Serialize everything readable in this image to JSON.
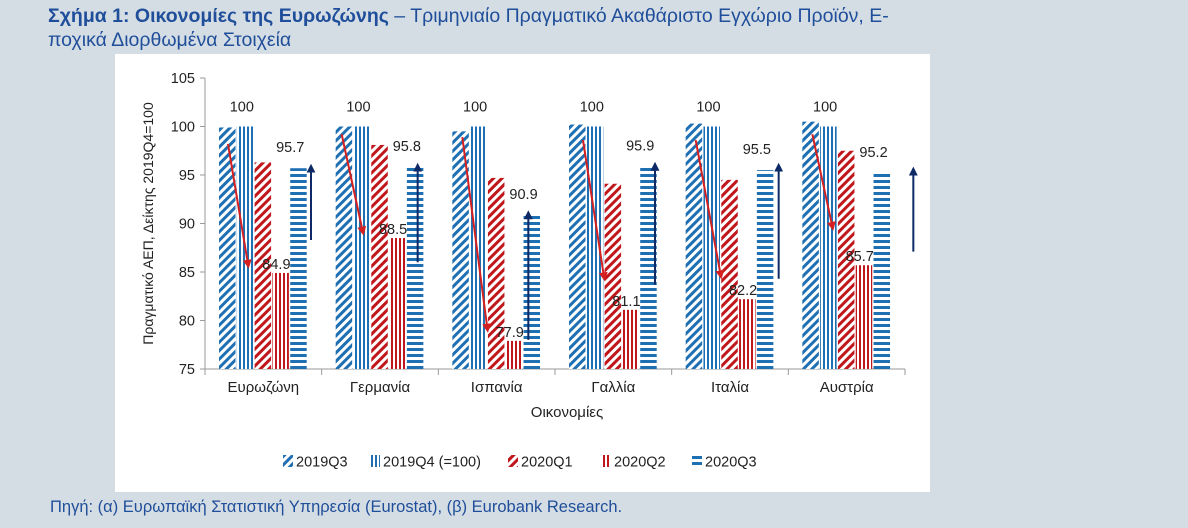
{
  "header": {
    "title_bold": "Σχήμα 1: Οικονομίες της Ευρωζώνης",
    "title_rest": " – Τριμηνιαίο Πραγματικό Ακαθάριστο Εγχώριο Προϊόν, Ε-",
    "title_line2": "ποχικά Διορθωμένα Στοιχεία"
  },
  "source": "Πηγή: (α) Ευρωπαϊκή Στατιστική Υπηρεσία (Eurostat), (β) Eurobank Research.",
  "colors": {
    "background": "#d5dde4",
    "title": "#1f4e9a",
    "blue_series": "#1f6fb3",
    "red_series": "#c0171c",
    "arrow_up": "#0d2a66",
    "arrow_down": "#d42020"
  },
  "chart_data": {
    "type": "bar",
    "title": "",
    "xlabel": "Οικονομίες",
    "ylabel": "Πραγματικό ΑΕΠ, Δείκτης 2019Q4=100",
    "ylim": [
      75,
      105
    ],
    "yticks": [
      75,
      80,
      85,
      90,
      95,
      100,
      105
    ],
    "categories": [
      "Ευρωζώνη",
      "Γερμανία",
      "Ισπανία",
      "Γαλλία",
      "Ιταλία",
      "Αυστρία"
    ],
    "series": [
      {
        "name": "2019Q3",
        "pattern": "blue-diag",
        "values": [
          99.9,
          100.0,
          99.5,
          100.2,
          100.3,
          100.5
        ]
      },
      {
        "name": "2019Q4 (=100)",
        "pattern": "blue-vert",
        "values": [
          100,
          100,
          100,
          100,
          100,
          100
        ]
      },
      {
        "name": "2020Q1",
        "pattern": "red-diag",
        "values": [
          96.3,
          98.1,
          94.7,
          94.1,
          94.5,
          97.5
        ]
      },
      {
        "name": "2020Q2",
        "pattern": "red-vert",
        "values": [
          84.9,
          88.5,
          77.9,
          81.1,
          82.2,
          85.7
        ]
      },
      {
        "name": "2020Q3",
        "pattern": "blue-horiz",
        "values": [
          95.7,
          95.8,
          90.9,
          95.9,
          95.5,
          95.2
        ]
      }
    ],
    "data_labels": {
      "2019Q4": [
        "100",
        "100",
        "100",
        "100",
        "100",
        "100"
      ],
      "2020Q2": [
        "84.9",
        "88.5",
        "77.9",
        "81.1",
        "82.2",
        "85.7"
      ],
      "2020Q3": [
        "95.7",
        "95.8",
        "90.9",
        "95.9",
        "95.5",
        "95.2"
      ]
    },
    "arrows": [
      {
        "direction": "down",
        "from": 98.2,
        "to": 85.8
      },
      {
        "direction": "up",
        "from": 88.3,
        "to": 95.7
      },
      {
        "direction": "down",
        "from": 99.2,
        "to": 89.2
      },
      {
        "direction": "up",
        "from": 86.0,
        "to": 95.8
      },
      {
        "direction": "down",
        "from": 98.9,
        "to": 79.2
      },
      {
        "direction": "up",
        "from": 78.0,
        "to": 90.9
      },
      {
        "direction": "down",
        "from": 98.6,
        "to": 84.5
      },
      {
        "direction": "up",
        "from": 83.7,
        "to": 95.9
      },
      {
        "direction": "down",
        "from": 98.6,
        "to": 84.7
      },
      {
        "direction": "up",
        "from": 84.3,
        "to": 95.8
      },
      {
        "direction": "down",
        "from": 99.2,
        "to": 89.7
      },
      {
        "direction": "up",
        "from": 87.1,
        "to": 95.4
      }
    ],
    "legend_position": "bottom",
    "grid": false
  }
}
